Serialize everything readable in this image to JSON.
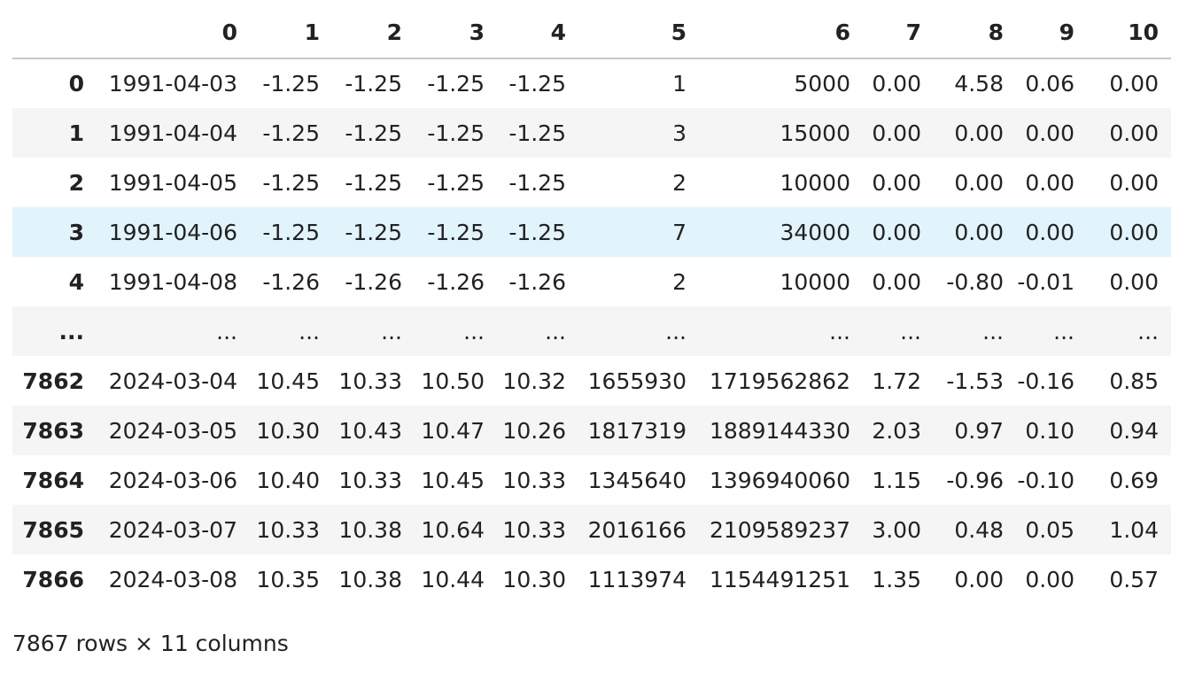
{
  "table": {
    "columns": [
      "",
      "0",
      "1",
      "2",
      "3",
      "4",
      "5",
      "6",
      "7",
      "8",
      "9",
      "10"
    ],
    "rows": [
      {
        "index": "0",
        "cells": [
          "1991-04-03",
          "-1.25",
          "-1.25",
          "-1.25",
          "-1.25",
          "1",
          "5000",
          "0.00",
          "4.58",
          "0.06",
          "0.00"
        ]
      },
      {
        "index": "1",
        "cells": [
          "1991-04-04",
          "-1.25",
          "-1.25",
          "-1.25",
          "-1.25",
          "3",
          "15000",
          "0.00",
          "0.00",
          "0.00",
          "0.00"
        ]
      },
      {
        "index": "2",
        "cells": [
          "1991-04-05",
          "-1.25",
          "-1.25",
          "-1.25",
          "-1.25",
          "2",
          "10000",
          "0.00",
          "0.00",
          "0.00",
          "0.00"
        ]
      },
      {
        "index": "3",
        "cells": [
          "1991-04-06",
          "-1.25",
          "-1.25",
          "-1.25",
          "-1.25",
          "7",
          "34000",
          "0.00",
          "0.00",
          "0.00",
          "0.00"
        ]
      },
      {
        "index": "4",
        "cells": [
          "1991-04-08",
          "-1.26",
          "-1.26",
          "-1.26",
          "-1.26",
          "2",
          "10000",
          "0.00",
          "-0.80",
          "-0.01",
          "0.00"
        ]
      },
      {
        "index": "...",
        "cells": [
          "...",
          "...",
          "...",
          "...",
          "...",
          "...",
          "...",
          "...",
          "...",
          "...",
          "..."
        ]
      },
      {
        "index": "7862",
        "cells": [
          "2024-03-04",
          "10.45",
          "10.33",
          "10.50",
          "10.32",
          "1655930",
          "1719562862",
          "1.72",
          "-1.53",
          "-0.16",
          "0.85"
        ]
      },
      {
        "index": "7863",
        "cells": [
          "2024-03-05",
          "10.30",
          "10.43",
          "10.47",
          "10.26",
          "1817319",
          "1889144330",
          "2.03",
          "0.97",
          "0.10",
          "0.94"
        ]
      },
      {
        "index": "7864",
        "cells": [
          "2024-03-06",
          "10.40",
          "10.33",
          "10.45",
          "10.33",
          "1345640",
          "1396940060",
          "1.15",
          "-0.96",
          "-0.10",
          "0.69"
        ]
      },
      {
        "index": "7865",
        "cells": [
          "2024-03-07",
          "10.33",
          "10.38",
          "10.64",
          "10.33",
          "2016166",
          "2109589237",
          "3.00",
          "0.48",
          "0.05",
          "1.04"
        ]
      },
      {
        "index": "7866",
        "cells": [
          "2024-03-08",
          "10.35",
          "10.38",
          "10.44",
          "10.30",
          "1113974",
          "1154491251",
          "1.35",
          "0.00",
          "0.00",
          "0.57"
        ]
      }
    ],
    "highlighted_row": "3",
    "colors": {
      "stripe": "#f5f5f5",
      "hover": "#e1f3fb",
      "header_rule": "#c8c8c8",
      "text": "#222222"
    }
  },
  "footer": {
    "shape_text": "7867 rows × 11 columns"
  }
}
